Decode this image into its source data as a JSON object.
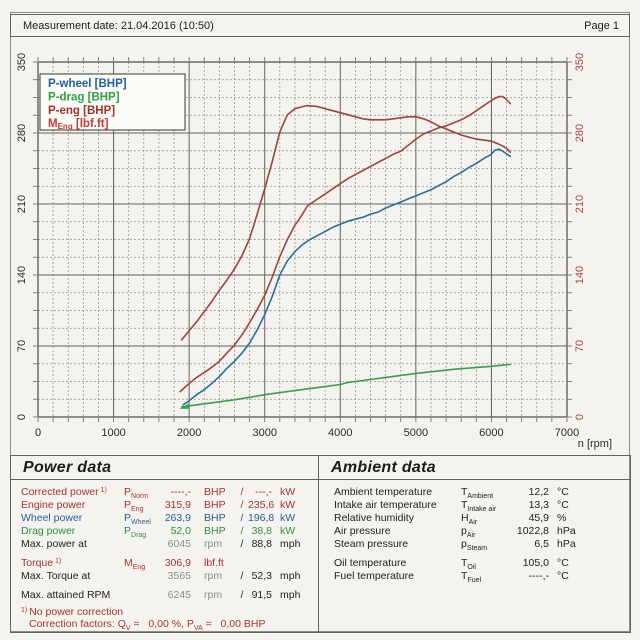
{
  "header": {
    "measurement_date_label": "Measurement date: 21.04.2016 (10:50)",
    "page_label": "Page 1"
  },
  "chart_data": {
    "type": "line",
    "x_axis": {
      "label": "n [rpm]",
      "min": 0,
      "max": 7000,
      "major_step": 1000,
      "minor_step": 200,
      "tick_labels": [
        "0",
        "1000",
        "2000",
        "3000",
        "4000",
        "5000",
        "6000",
        "7000"
      ]
    },
    "y_axis": {
      "min": 0,
      "max": 350,
      "major_step": 70,
      "minor_step": 17.5,
      "tick_labels": [
        "0",
        "70",
        "140",
        "210",
        "280",
        "350"
      ],
      "left_label_color": "#2b2b28",
      "right_label_color": "#a6463c"
    },
    "grid": {
      "major_color": "#62625b",
      "minor_color": "#90908a",
      "frame_color": "#4a4a44"
    },
    "legend": {
      "items": [
        {
          "text": "P-wheel [BHP]",
          "sub": "",
          "suffix": "",
          "color": "#1f5f9e"
        },
        {
          "text": "P-drag [BHP]",
          "sub": "",
          "suffix": "",
          "color": "#2f9e44"
        },
        {
          "text": "P-eng [BHP]",
          "sub": "",
          "suffix": "",
          "color": "#9c342c"
        },
        {
          "text": "M",
          "sub": "Eng",
          "suffix": " [lbf.ft]",
          "color": "#c03b32"
        }
      ]
    },
    "series": [
      {
        "name": "engine-power",
        "unit": "BHP",
        "color": "#9e463c",
        "points": [
          [
            1880,
            25
          ],
          [
            2000,
            33
          ],
          [
            2100,
            39
          ],
          [
            2200,
            44
          ],
          [
            2300,
            49
          ],
          [
            2400,
            55
          ],
          [
            2500,
            63
          ],
          [
            2600,
            71
          ],
          [
            2700,
            81
          ],
          [
            2800,
            93
          ],
          [
            2900,
            106
          ],
          [
            3000,
            120
          ],
          [
            3100,
            138
          ],
          [
            3200,
            158
          ],
          [
            3300,
            175
          ],
          [
            3400,
            189
          ],
          [
            3500,
            200
          ],
          [
            3565,
            208
          ],
          [
            3700,
            215
          ],
          [
            3800,
            220
          ],
          [
            3900,
            225
          ],
          [
            4000,
            230
          ],
          [
            4100,
            235
          ],
          [
            4200,
            239
          ],
          [
            4300,
            243
          ],
          [
            4400,
            247
          ],
          [
            4500,
            251
          ],
          [
            4600,
            255
          ],
          [
            4700,
            259
          ],
          [
            4800,
            262
          ],
          [
            4900,
            268
          ],
          [
            5000,
            274
          ],
          [
            5100,
            279
          ],
          [
            5200,
            282
          ],
          [
            5300,
            285
          ],
          [
            5400,
            287
          ],
          [
            5500,
            290
          ],
          [
            5600,
            293
          ],
          [
            5700,
            297
          ],
          [
            5800,
            302
          ],
          [
            5900,
            307
          ],
          [
            6000,
            312
          ],
          [
            6045,
            314
          ],
          [
            6100,
            316
          ],
          [
            6150,
            316
          ],
          [
            6200,
            313
          ],
          [
            6250,
            309
          ]
        ]
      },
      {
        "name": "torque",
        "unit": "lbf.ft",
        "color": "#9a453d",
        "points": [
          [
            1900,
            76
          ],
          [
            2000,
            85
          ],
          [
            2100,
            94
          ],
          [
            2200,
            104
          ],
          [
            2300,
            114
          ],
          [
            2400,
            125
          ],
          [
            2500,
            135
          ],
          [
            2600,
            146
          ],
          [
            2700,
            159
          ],
          [
            2800,
            176
          ],
          [
            2900,
            200
          ],
          [
            3000,
            225
          ],
          [
            3100,
            252
          ],
          [
            3200,
            281
          ],
          [
            3300,
            298
          ],
          [
            3400,
            304
          ],
          [
            3500,
            306
          ],
          [
            3565,
            307
          ],
          [
            3700,
            306
          ],
          [
            3800,
            304
          ],
          [
            3900,
            302
          ],
          [
            4000,
            300
          ],
          [
            4100,
            298
          ],
          [
            4200,
            296
          ],
          [
            4300,
            294
          ],
          [
            4400,
            293
          ],
          [
            4500,
            293
          ],
          [
            4600,
            293
          ],
          [
            4700,
            294
          ],
          [
            4800,
            295
          ],
          [
            4900,
            296
          ],
          [
            5000,
            296
          ],
          [
            5100,
            294
          ],
          [
            5200,
            291
          ],
          [
            5300,
            287
          ],
          [
            5400,
            284
          ],
          [
            5500,
            281
          ],
          [
            5600,
            278
          ],
          [
            5700,
            276
          ],
          [
            5800,
            274
          ],
          [
            5900,
            273
          ],
          [
            6000,
            272
          ],
          [
            6100,
            269
          ],
          [
            6150,
            267
          ],
          [
            6200,
            265
          ],
          [
            6250,
            261
          ]
        ]
      },
      {
        "name": "wheel-power",
        "unit": "BHP",
        "color": "#2e6d94",
        "points": [
          [
            1920,
            12
          ],
          [
            2000,
            16
          ],
          [
            2100,
            22
          ],
          [
            2200,
            27
          ],
          [
            2300,
            33
          ],
          [
            2400,
            40
          ],
          [
            2500,
            48
          ],
          [
            2600,
            55
          ],
          [
            2700,
            63
          ],
          [
            2800,
            73
          ],
          [
            2900,
            86
          ],
          [
            3000,
            101
          ],
          [
            3100,
            119
          ],
          [
            3200,
            140
          ],
          [
            3300,
            154
          ],
          [
            3400,
            163
          ],
          [
            3500,
            170
          ],
          [
            3600,
            175
          ],
          [
            3700,
            179
          ],
          [
            3800,
            183
          ],
          [
            3900,
            187
          ],
          [
            4000,
            190
          ],
          [
            4100,
            193
          ],
          [
            4200,
            195
          ],
          [
            4300,
            197
          ],
          [
            4400,
            200
          ],
          [
            4500,
            202
          ],
          [
            4600,
            206
          ],
          [
            4700,
            209
          ],
          [
            4800,
            212
          ],
          [
            4900,
            215
          ],
          [
            5000,
            218
          ],
          [
            5100,
            221
          ],
          [
            5200,
            224
          ],
          [
            5300,
            228
          ],
          [
            5400,
            232
          ],
          [
            5500,
            237
          ],
          [
            5600,
            241
          ],
          [
            5700,
            246
          ],
          [
            5800,
            250
          ],
          [
            5900,
            255
          ],
          [
            6000,
            259
          ],
          [
            6045,
            263
          ],
          [
            6100,
            264
          ],
          [
            6150,
            262
          ],
          [
            6250,
            257
          ]
        ]
      },
      {
        "name": "drag-power",
        "unit": "BHP",
        "color": "#3f9b51",
        "points": [
          [
            1900,
            10
          ],
          [
            2200,
            13
          ],
          [
            2600,
            17
          ],
          [
            3000,
            22
          ],
          [
            3400,
            26
          ],
          [
            3800,
            30
          ],
          [
            4000,
            32
          ],
          [
            4100,
            34
          ],
          [
            4500,
            38
          ],
          [
            5000,
            43
          ],
          [
            5500,
            47
          ],
          [
            6000,
            50
          ],
          [
            6250,
            52
          ]
        ]
      }
    ],
    "start_marker": {
      "x": 1900,
      "y": 10,
      "color": "#3f9b51"
    }
  },
  "power_section": {
    "title": "Power data",
    "rows": [
      {
        "label": "Corrected power",
        "sup": "1)",
        "sym": "P",
        "sym_sub": "Norm",
        "v1": "----,-",
        "u1": "BHP",
        "slash": "/",
        "v2": "---,-",
        "u2": "kW",
        "color": "red"
      },
      {
        "label": "Engine power",
        "sup": "",
        "sym": "P",
        "sym_sub": "Eng",
        "v1": "315,9",
        "u1": "BHP",
        "slash": "/",
        "v2": "235,6",
        "u2": "kW",
        "color": "red"
      },
      {
        "label": "Wheel power",
        "sup": "",
        "sym": "P",
        "sym_sub": "Wheel",
        "v1": "263,9",
        "u1": "BHP",
        "slash": "/",
        "v2": "196,8",
        "u2": "kW",
        "color": "blue"
      },
      {
        "label": "Drag power",
        "sup": "",
        "sym": "P",
        "sym_sub": "Drag",
        "v1": "52,0",
        "u1": "BHP",
        "slash": "/",
        "v2": "38,8",
        "u2": "kW",
        "color": "green"
      },
      {
        "label": "Max. power at",
        "sup": "",
        "sym": "",
        "sym_sub": "",
        "v1": "6045",
        "u1": "rpm",
        "slash": "/",
        "v2": "88,8",
        "u2": "mph",
        "color": "black",
        "v1_color": "gray"
      },
      {
        "label": "Torque",
        "sup": "1)",
        "sym": "M",
        "sym_sub": "Eng",
        "v1": "306,9",
        "u1": "lbf.ft",
        "slash": "",
        "v2": "",
        "u2": "",
        "color": "red",
        "gap": true
      },
      {
        "label": "Max. Torque at",
        "sup": "",
        "sym": "",
        "sym_sub": "",
        "v1": "3565",
        "u1": "rpm",
        "slash": "/",
        "v2": "52,3",
        "u2": "mph",
        "color": "black",
        "v1_color": "gray"
      },
      {
        "label": "Max. attained RPM",
        "sup": "",
        "sym": "",
        "sym_sub": "",
        "v1": "6245",
        "u1": "rpm",
        "slash": "/",
        "v2": "91,5",
        "u2": "mph",
        "color": "black",
        "v1_color": "gray",
        "gap": true
      }
    ],
    "footnote1": {
      "sup": "1)",
      "text": "No power correction"
    },
    "footnote2": {
      "parts": [
        {
          "t": "Correction factors: Q"
        },
        {
          "t": "V",
          "sub": true
        },
        {
          "t": " =   0,00 %, P"
        },
        {
          "t": "VA",
          "sub": true
        },
        {
          "t": " =   0,00 BHP"
        }
      ]
    }
  },
  "ambient_section": {
    "title": "Ambient data",
    "rows": [
      {
        "label": "Ambient temperature",
        "sym": "T",
        "sym_sub": "Ambient",
        "v": "12,2",
        "u": "°C"
      },
      {
        "label": "Intake air temperature",
        "sym": "T",
        "sym_sub": "Intake air",
        "v": "13,3",
        "u": "°C"
      },
      {
        "label": "Relative humidity",
        "sym": "H",
        "sym_sub": "Air",
        "v": "45,9",
        "u": "%"
      },
      {
        "label": "Air pressure",
        "sym": "p",
        "sym_sub": "Air",
        "v": "1022,8",
        "u": "hPa"
      },
      {
        "label": "Steam pressure",
        "sym": "p",
        "sym_sub": "Steam",
        "v": "6,5",
        "u": "hPa"
      },
      {
        "label": "Oil temperature",
        "sym": "T",
        "sym_sub": "Oil",
        "v": "105,0",
        "u": "°C",
        "gap": true
      },
      {
        "label": "Fuel temperature",
        "sym": "T",
        "sym_sub": "Fuel",
        "v": "----,-",
        "u": "°C"
      }
    ]
  },
  "colors": {
    "red": "#a93330",
    "blue": "#2a5f94",
    "green": "#2f9040",
    "black": "#222222",
    "gray": "#8d8d8d"
  }
}
